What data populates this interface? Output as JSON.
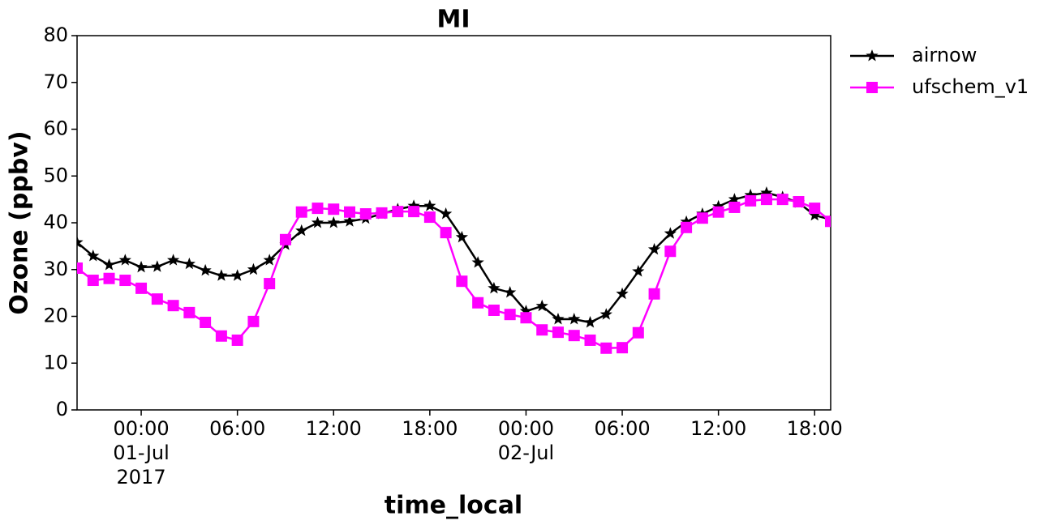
{
  "chart_data": {
    "type": "line",
    "title": "MI",
    "x_label": "time_local",
    "y_label": "Ozone (ppbv)",
    "x": [
      "2017-06-30 20:00",
      "2017-06-30 21:00",
      "2017-06-30 22:00",
      "2017-06-30 23:00",
      "2017-07-01 00:00",
      "2017-07-01 01:00",
      "2017-07-01 02:00",
      "2017-07-01 03:00",
      "2017-07-01 04:00",
      "2017-07-01 05:00",
      "2017-07-01 06:00",
      "2017-07-01 07:00",
      "2017-07-01 08:00",
      "2017-07-01 09:00",
      "2017-07-01 10:00",
      "2017-07-01 11:00",
      "2017-07-01 12:00",
      "2017-07-01 13:00",
      "2017-07-01 14:00",
      "2017-07-01 15:00",
      "2017-07-01 16:00",
      "2017-07-01 17:00",
      "2017-07-01 18:00",
      "2017-07-01 19:00",
      "2017-07-01 20:00",
      "2017-07-01 21:00",
      "2017-07-01 22:00",
      "2017-07-01 23:00",
      "2017-07-02 00:00",
      "2017-07-02 01:00",
      "2017-07-02 02:00",
      "2017-07-02 03:00",
      "2017-07-02 04:00",
      "2017-07-02 05:00",
      "2017-07-02 06:00",
      "2017-07-02 07:00",
      "2017-07-02 08:00",
      "2017-07-02 09:00",
      "2017-07-02 10:00",
      "2017-07-02 11:00",
      "2017-07-02 12:00",
      "2017-07-02 13:00",
      "2017-07-02 14:00",
      "2017-07-02 15:00",
      "2017-07-02 16:00",
      "2017-07-02 17:00",
      "2017-07-02 18:00",
      "2017-07-02 19:00"
    ],
    "series": [
      {
        "name": "airnow",
        "color": "#000000",
        "marker": "star",
        "values": [
          35.8,
          32.9,
          31.0,
          32.0,
          30.5,
          30.6,
          32.0,
          31.2,
          29.8,
          28.7,
          28.7,
          30.0,
          32.0,
          35.3,
          38.3,
          40.0,
          40.0,
          40.3,
          40.9,
          41.9,
          42.9,
          43.6,
          43.6,
          41.9,
          36.9,
          31.5,
          26.0,
          25.1,
          21.1,
          22.2,
          19.4,
          19.4,
          18.7,
          20.4,
          24.8,
          29.6,
          34.3,
          37.7,
          40.2,
          41.9,
          43.5,
          45.0,
          45.9,
          46.4,
          45.5,
          44.3,
          41.6,
          40.7
        ]
      },
      {
        "name": "ufschem_v1",
        "color": "#ff00ff",
        "marker": "square",
        "values": [
          30.3,
          27.7,
          28.1,
          27.7,
          26.0,
          23.7,
          22.3,
          20.8,
          18.7,
          15.8,
          14.9,
          18.9,
          27.0,
          36.4,
          42.3,
          43.1,
          42.9,
          42.3,
          41.9,
          42.1,
          42.4,
          42.4,
          41.2,
          37.9,
          27.5,
          22.9,
          21.3,
          20.4,
          19.7,
          17.1,
          16.6,
          15.9,
          14.9,
          13.2,
          13.3,
          16.5,
          24.8,
          33.9,
          39.0,
          41.0,
          42.3,
          43.3,
          44.7,
          45.0,
          45.0,
          44.5,
          43.1,
          40.3
        ]
      }
    ],
    "xlim": [
      "2017-06-30 20:00",
      "2017-07-02 19:00"
    ],
    "xticks": [
      {
        "value": "2017-07-01 00:00",
        "label": "00:00\n01-Jul\n2017"
      },
      {
        "value": "2017-07-01 06:00",
        "label": "06:00"
      },
      {
        "value": "2017-07-01 12:00",
        "label": "12:00"
      },
      {
        "value": "2017-07-01 18:00",
        "label": "18:00"
      },
      {
        "value": "2017-07-02 00:00",
        "label": "00:00\n02-Jul"
      },
      {
        "value": "2017-07-02 06:00",
        "label": "06:00"
      },
      {
        "value": "2017-07-02 12:00",
        "label": "12:00"
      },
      {
        "value": "2017-07-02 18:00",
        "label": "18:00"
      }
    ],
    "ylim": [
      0,
      80
    ],
    "yticks": [
      0,
      10,
      20,
      30,
      40,
      50,
      60,
      70,
      80
    ],
    "grid": false,
    "legend": "outside upper right"
  }
}
